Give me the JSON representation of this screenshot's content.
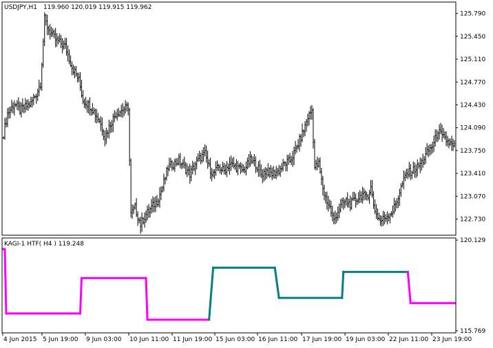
{
  "main_header": {
    "symbol": "USDJPY,H1",
    "ohlc": "119.960 120.019 119.915 119.962"
  },
  "indicator_header": {
    "label": "KAGI-1 HTF( H4 ) 119.248"
  },
  "colors": {
    "background": "#ffffff",
    "frame": "#000000",
    "bars": "#000000",
    "kagi_down": "#ff00ff",
    "kagi_up": "#008080"
  },
  "chart_data": [
    {
      "type": "bar",
      "title": "USDJPY,H1",
      "ylim": [
        122.5,
        125.95
      ],
      "y_ticks": [
        "125.790",
        "125.450",
        "125.110",
        "124.770",
        "124.430",
        "124.090",
        "123.750",
        "123.410",
        "123.070",
        "122.730"
      ],
      "y_tick_values": [
        125.79,
        125.45,
        125.11,
        124.77,
        124.43,
        124.09,
        123.75,
        123.41,
        123.07,
        122.73
      ],
      "x_ticks": [
        "4 Jun 2015",
        "5 Jun 19:00",
        "9 Jun 03:00",
        "10 Jun 11:00",
        "11 Jun 19:00",
        "15 Jun 03:00",
        "16 Jun 11:00",
        "17 Jun 19:00",
        "19 Jun 03:00",
        "22 Jun 11:00",
        "23 Jun 19:00"
      ],
      "anchors": [
        [
          0,
          124.0
        ],
        [
          3,
          124.3
        ],
        [
          8,
          124.45
        ],
        [
          12,
          124.35
        ],
        [
          16,
          124.4
        ],
        [
          20,
          124.45
        ],
        [
          24,
          124.6
        ],
        [
          27,
          124.75
        ],
        [
          30,
          125.7
        ],
        [
          33,
          125.55
        ],
        [
          38,
          125.4
        ],
        [
          45,
          125.3
        ],
        [
          50,
          125.0
        ],
        [
          55,
          124.8
        ],
        [
          58,
          124.5
        ],
        [
          64,
          124.4
        ],
        [
          70,
          124.2
        ],
        [
          74,
          123.95
        ],
        [
          78,
          124.15
        ],
        [
          82,
          124.3
        ],
        [
          86,
          124.35
        ],
        [
          91,
          124.4
        ],
        [
          93,
          122.8
        ],
        [
          96,
          122.9
        ],
        [
          100,
          122.65
        ],
        [
          104,
          122.8
        ],
        [
          108,
          122.9
        ],
        [
          112,
          123.0
        ],
        [
          116,
          123.2
        ],
        [
          120,
          123.5
        ],
        [
          124,
          123.55
        ],
        [
          128,
          123.6
        ],
        [
          132,
          123.5
        ],
        [
          136,
          123.4
        ],
        [
          140,
          123.55
        ],
        [
          144,
          123.65
        ],
        [
          147,
          123.7
        ],
        [
          150,
          123.5
        ],
        [
          153,
          123.4
        ],
        [
          157,
          123.5
        ],
        [
          161,
          123.45
        ],
        [
          165,
          123.55
        ],
        [
          170,
          123.5
        ],
        [
          175,
          123.45
        ],
        [
          180,
          123.6
        ],
        [
          184,
          123.55
        ],
        [
          188,
          123.4
        ],
        [
          192,
          123.45
        ],
        [
          196,
          123.4
        ],
        [
          201,
          123.45
        ],
        [
          205,
          123.55
        ],
        [
          209,
          123.6
        ],
        [
          213,
          123.75
        ],
        [
          216,
          123.9
        ],
        [
          219,
          124.05
        ],
        [
          222,
          124.25
        ],
        [
          225,
          124.35
        ],
        [
          227,
          123.5
        ],
        [
          230,
          123.55
        ],
        [
          232,
          123.3
        ],
        [
          234,
          123.1
        ],
        [
          236,
          123.0
        ],
        [
          238,
          122.9
        ],
        [
          241,
          122.7
        ],
        [
          244,
          122.85
        ],
        [
          247,
          122.95
        ],
        [
          250,
          123.0
        ],
        [
          253,
          122.95
        ],
        [
          256,
          123.0
        ],
        [
          259,
          123.05
        ],
        [
          262,
          123.1
        ],
        [
          264,
          123.05
        ],
        [
          266,
          123.1
        ],
        [
          268,
          123.2
        ],
        [
          270,
          122.95
        ],
        [
          272,
          122.8
        ],
        [
          275,
          122.7
        ],
        [
          278,
          122.75
        ],
        [
          281,
          122.8
        ],
        [
          284,
          122.85
        ],
        [
          287,
          123.0
        ],
        [
          290,
          123.2
        ],
        [
          294,
          123.4
        ],
        [
          298,
          123.45
        ],
        [
          302,
          123.5
        ],
        [
          306,
          123.6
        ],
        [
          310,
          123.75
        ],
        [
          314,
          123.85
        ],
        [
          317,
          124.05
        ],
        [
          320,
          123.95
        ],
        [
          323,
          123.9
        ],
        [
          326,
          123.85
        ],
        [
          328,
          123.8
        ],
        [
          331,
          123.85
        ]
      ],
      "series": [
        {
          "name": "USDJPY,H1",
          "style": "ohlc-bars",
          "color": "#000000"
        }
      ]
    },
    {
      "type": "line",
      "title": "KAGI-1 HTF( H4 ) 119.248",
      "ylim": [
        115.7,
        120.2
      ],
      "y_ticks": [
        "120.129",
        "115.769"
      ],
      "y_tick_values": [
        120.129,
        115.769
      ],
      "series": [
        {
          "name": "KAGI-1 HTF( H4 )",
          "style": "step",
          "points": [
            [
              0,
              119.7,
              "#ff00ff"
            ],
            [
              1,
              119.7,
              "#ff00ff"
            ],
            [
              2,
              116.6,
              "#ff00ff"
            ],
            [
              56,
              116.6,
              "#ff00ff"
            ],
            [
              57,
              118.3,
              "#ff00ff"
            ],
            [
              104,
              118.3,
              "#ff00ff"
            ],
            [
              105,
              116.3,
              "#ff00ff"
            ],
            [
              150,
              116.3,
              "#ff00ff"
            ],
            [
              153,
              118.8,
              "#008080"
            ],
            [
              198,
              118.8,
              "#008080"
            ],
            [
              201,
              117.35,
              "#008080"
            ],
            [
              247,
              117.35,
              "#008080"
            ],
            [
              248,
              118.6,
              "#008080"
            ],
            [
              295,
              118.6,
              "#008080"
            ],
            [
              297,
              117.1,
              "#ff00ff"
            ],
            [
              329,
              117.1,
              "#ff00ff"
            ]
          ]
        }
      ]
    }
  ]
}
